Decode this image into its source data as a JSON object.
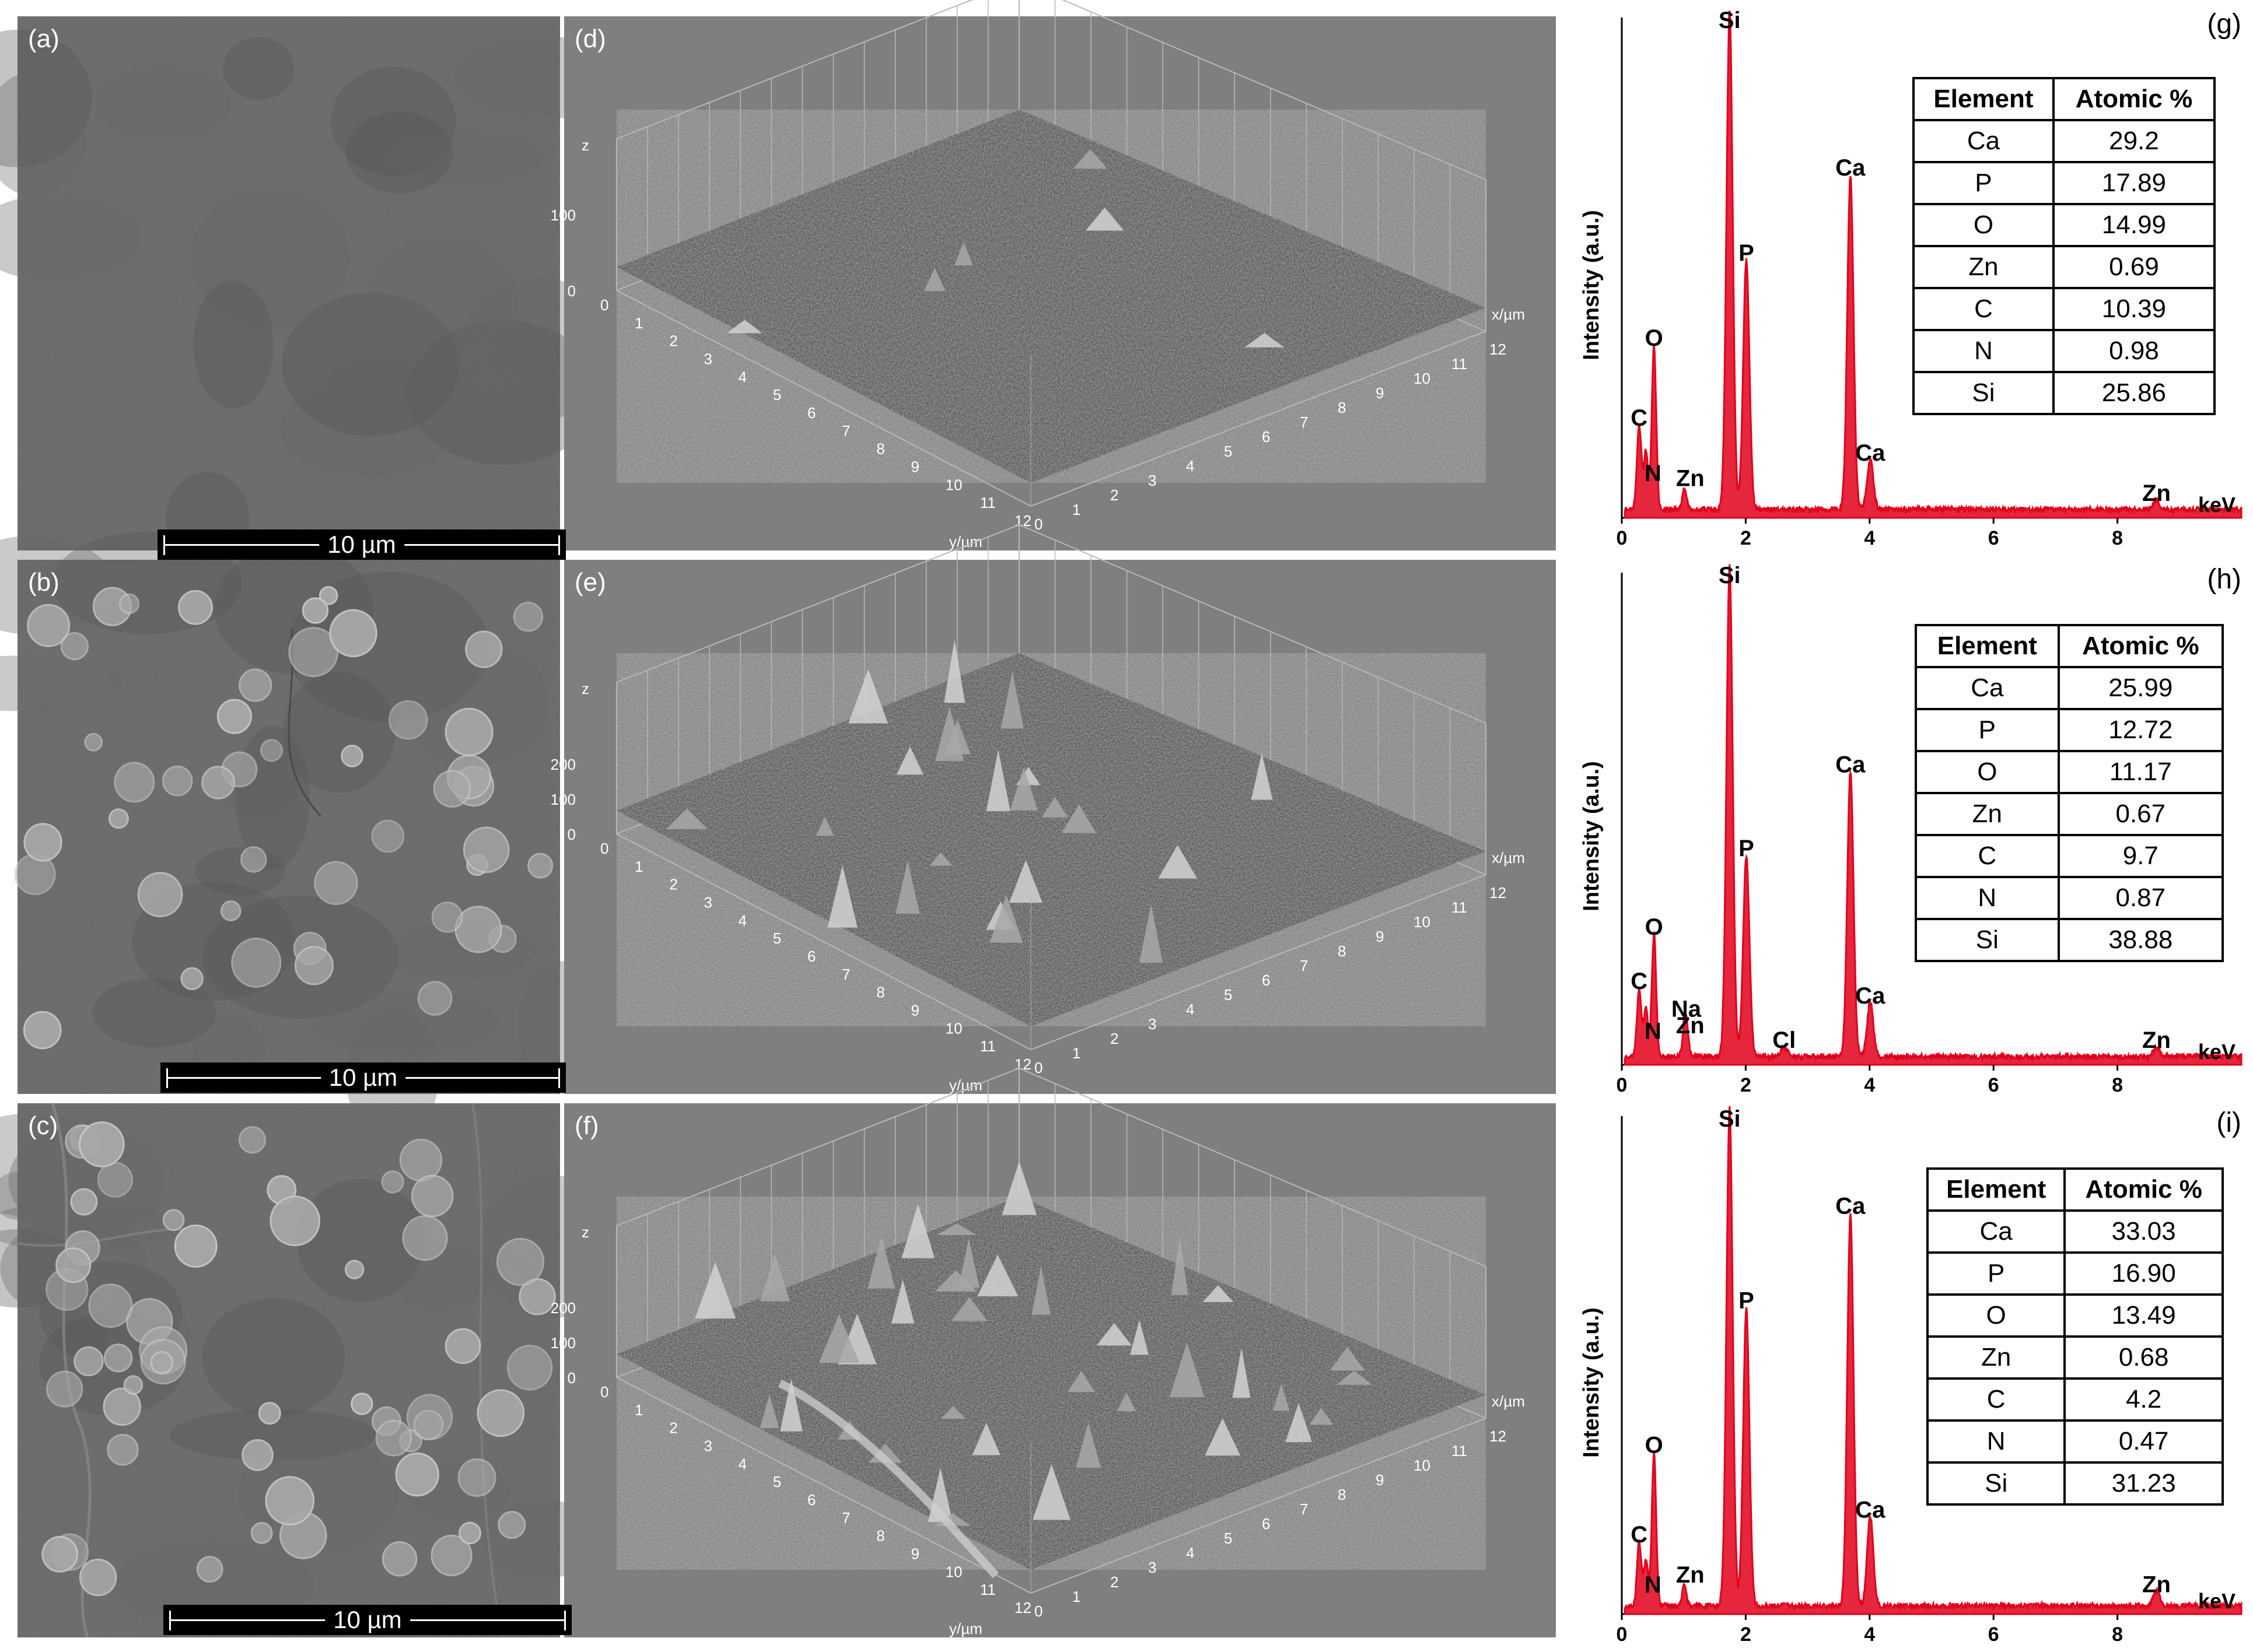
{
  "rows": [
    {
      "sem": {
        "label": "(a)",
        "scale": "10 µm",
        "particles": []
      },
      "plot3d": {
        "label": "(d)",
        "z_axis": "z",
        "x_axis": "x/µm",
        "y_axis": "y/µm",
        "z_ticks": [
          "0",
          "100"
        ],
        "xy_ticks": [
          "0",
          "1",
          "2",
          "3",
          "4",
          "5",
          "6",
          "7",
          "8",
          "9",
          "10",
          "11",
          "12"
        ]
      },
      "eds": {
        "label": "(g)",
        "ylabel": "Intensity (a.u.)",
        "xlabel": "keV",
        "x_ticks": [
          "0",
          "2",
          "4",
          "6",
          "8"
        ],
        "table_headers": [
          "Element",
          "Atomic %"
        ],
        "table_rows": [
          [
            "Ca",
            "29.2"
          ],
          [
            "P",
            "17.89"
          ],
          [
            "O",
            "14.99"
          ],
          [
            "Zn",
            "0.69"
          ],
          [
            "C",
            "10.39"
          ],
          [
            "N",
            "0.98"
          ],
          [
            "Si",
            "25.86"
          ]
        ]
      }
    },
    {
      "sem": {
        "label": "(b)",
        "scale": "10 µm"
      },
      "plot3d": {
        "label": "(e)",
        "z_axis": "z",
        "x_axis": "x/µm",
        "y_axis": "y/µm",
        "z_ticks": [
          "0",
          "100",
          "200"
        ],
        "xy_ticks": [
          "0",
          "1",
          "2",
          "3",
          "4",
          "5",
          "6",
          "7",
          "8",
          "9",
          "10",
          "11",
          "12"
        ]
      },
      "eds": {
        "label": "(h)",
        "ylabel": "Intensity (a.u.)",
        "xlabel": "keV",
        "x_ticks": [
          "0",
          "2",
          "4",
          "6",
          "8"
        ],
        "table_headers": [
          "Element",
          "Atomic %"
        ],
        "table_rows": [
          [
            "Ca",
            "25.99"
          ],
          [
            "P",
            "12.72"
          ],
          [
            "O",
            "11.17"
          ],
          [
            "Zn",
            "0.67"
          ],
          [
            "C",
            "9.7"
          ],
          [
            "N",
            "0.87"
          ],
          [
            "Si",
            "38.88"
          ]
        ]
      }
    },
    {
      "sem": {
        "label": "(c)",
        "scale": "10 µm"
      },
      "plot3d": {
        "label": "(f)",
        "z_axis": "z",
        "x_axis": "x/µm",
        "y_axis": "y/µm",
        "z_ticks": [
          "0",
          "100",
          "200"
        ],
        "xy_ticks": [
          "0",
          "1",
          "2",
          "3",
          "4",
          "5",
          "6",
          "7",
          "8",
          "9",
          "10",
          "11",
          "12"
        ]
      },
      "eds": {
        "label": "(i)",
        "ylabel": "Intensity (a.u.)",
        "xlabel": "keV",
        "x_ticks": [
          "0",
          "2",
          "4",
          "6",
          "8"
        ],
        "table_headers": [
          "Element",
          "Atomic %"
        ],
        "table_rows": [
          [
            "Ca",
            "33.03"
          ],
          [
            "P",
            "16.90"
          ],
          [
            "O",
            "13.49"
          ],
          [
            "Zn",
            "0.68"
          ],
          [
            "C",
            "4.2"
          ],
          [
            "N",
            "0.47"
          ],
          [
            "Si",
            "31.23"
          ]
        ]
      }
    }
  ],
  "chart_data": [
    {
      "type": "line",
      "title": "(g)",
      "xlabel": "keV",
      "ylabel": "Intensity (a.u.)",
      "xlim": [
        0,
        10
      ],
      "ylim": [
        0,
        1
      ],
      "peaks": [
        {
          "element": "C",
          "keV": 0.28,
          "intensity": 0.17
        },
        {
          "element": "N",
          "keV": 0.39,
          "intensity": 0.12
        },
        {
          "element": "O",
          "keV": 0.52,
          "intensity": 0.33
        },
        {
          "element": "Zn",
          "keV": 1.01,
          "intensity": 0.04
        },
        {
          "element": "Si",
          "keV": 1.74,
          "intensity": 1.0
        },
        {
          "element": "P",
          "keV": 2.01,
          "intensity": 0.5
        },
        {
          "element": "Ca",
          "keV": 3.69,
          "intensity": 0.67
        },
        {
          "element": "Ca",
          "keV": 4.01,
          "intensity": 0.1
        },
        {
          "element": "Zn",
          "keV": 8.63,
          "intensity": 0.02
        }
      ]
    },
    {
      "type": "line",
      "title": "(h)",
      "xlabel": "keV",
      "ylabel": "Intensity (a.u.)",
      "xlim": [
        0,
        10
      ],
      "ylim": [
        0,
        1
      ],
      "peaks": [
        {
          "element": "C",
          "keV": 0.28,
          "intensity": 0.14
        },
        {
          "element": "N",
          "keV": 0.39,
          "intensity": 0.1
        },
        {
          "element": "O",
          "keV": 0.52,
          "intensity": 0.25
        },
        {
          "element": "Na",
          "keV": 1.04,
          "intensity": 0.06
        },
        {
          "element": "Zn",
          "keV": 1.01,
          "intensity": 0.04
        },
        {
          "element": "Si",
          "keV": 1.74,
          "intensity": 1.0
        },
        {
          "element": "P",
          "keV": 2.01,
          "intensity": 0.41
        },
        {
          "element": "Cl",
          "keV": 2.62,
          "intensity": 0.02
        },
        {
          "element": "Ca",
          "keV": 3.69,
          "intensity": 0.58
        },
        {
          "element": "Ca",
          "keV": 4.01,
          "intensity": 0.11
        },
        {
          "element": "Zn",
          "keV": 8.63,
          "intensity": 0.02
        }
      ]
    },
    {
      "type": "line",
      "title": "(i)",
      "xlabel": "keV",
      "ylabel": "Intensity (a.u.)",
      "xlim": [
        0,
        10
      ],
      "ylim": [
        0,
        1
      ],
      "peaks": [
        {
          "element": "C",
          "keV": 0.28,
          "intensity": 0.13
        },
        {
          "element": "N",
          "keV": 0.39,
          "intensity": 0.09
        },
        {
          "element": "O",
          "keV": 0.52,
          "intensity": 0.31
        },
        {
          "element": "Zn",
          "keV": 1.01,
          "intensity": 0.04
        },
        {
          "element": "Si",
          "keV": 1.74,
          "intensity": 1.0
        },
        {
          "element": "P",
          "keV": 2.01,
          "intensity": 0.6
        },
        {
          "element": "Ca",
          "keV": 3.69,
          "intensity": 0.79
        },
        {
          "element": "Ca",
          "keV": 4.01,
          "intensity": 0.18
        },
        {
          "element": "Zn",
          "keV": 8.63,
          "intensity": 0.03
        }
      ]
    }
  ],
  "colors": {
    "spectrum": "#e0001b",
    "sem_bg": "#5e5e5e",
    "plot_bg": "#7f7f7f"
  }
}
